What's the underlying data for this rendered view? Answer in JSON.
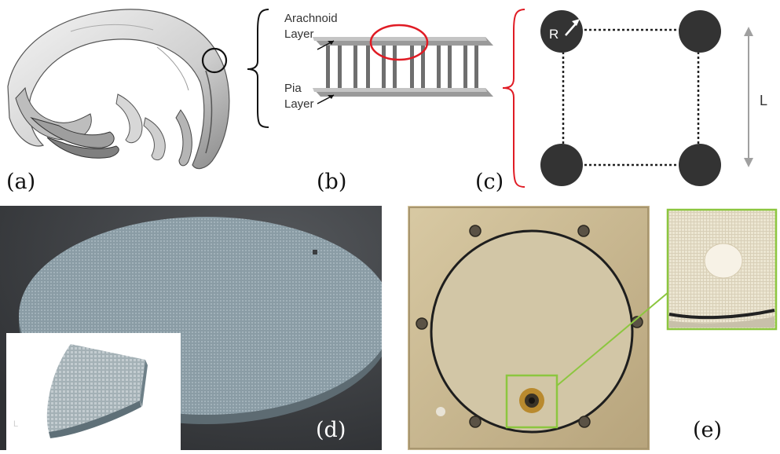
{
  "figure": {
    "panels": [
      {
        "id": "a",
        "label": "(a)"
      },
      {
        "id": "b",
        "label": "(b)",
        "top_layer_label": "Arachnoid\nLayer",
        "bottom_layer_label": "Pia\nLayer"
      },
      {
        "id": "c",
        "label": "(c)",
        "radius_symbol": "R",
        "length_symbol": "L"
      },
      {
        "id": "d",
        "label": "(d)",
        "inset_corner_mark": "L"
      },
      {
        "id": "e",
        "label": "(e)"
      }
    ],
    "colors": {
      "highlight_red": "#e01b24",
      "highlight_green": "#8cc63f",
      "node_dark": "#333333",
      "lattice_blue_gray": "#8a9ca5",
      "render_background": "#3b3d40",
      "photo_tan": "#c9b894"
    }
  }
}
